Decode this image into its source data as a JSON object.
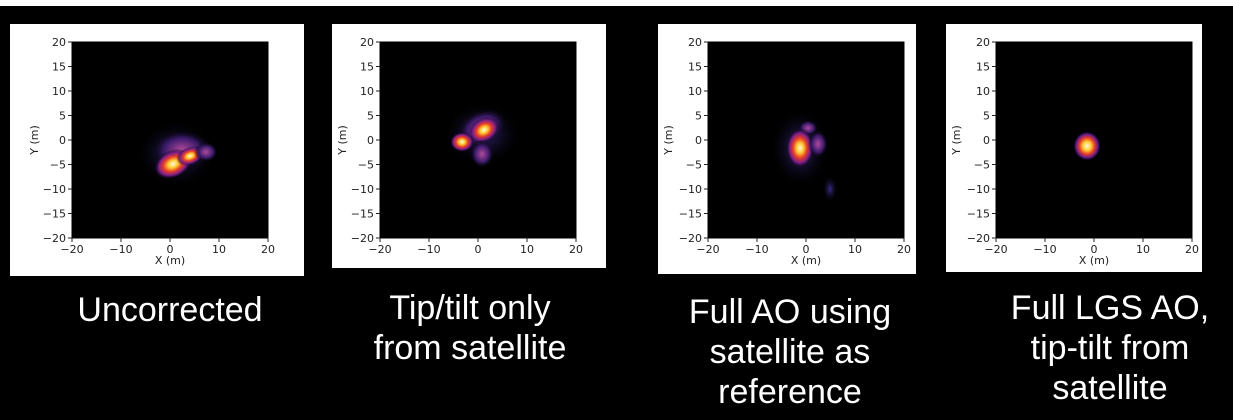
{
  "colors": {
    "background": "#000000",
    "panel": "#ffffff",
    "text": "#ffffff"
  },
  "panels": [
    {
      "caption": [
        "Uncorrected"
      ],
      "xlabel": "X (m)",
      "ylabel": "Y (m)",
      "xticks": [
        "−20",
        "−10",
        "0",
        "10",
        "20"
      ],
      "yticks": [
        "20",
        "15",
        "10",
        "5",
        "0",
        "−5",
        "−10",
        "−15",
        "−20"
      ]
    },
    {
      "caption": [
        "Tip/tilt only",
        "from satellite"
      ],
      "xlabel": "",
      "ylabel": "Y (m)",
      "xticks": [
        "−20",
        "−10",
        "0",
        "10",
        "20"
      ],
      "yticks": [
        "20",
        "15",
        "10",
        "5",
        "0",
        "−5",
        "−10",
        "−15",
        "−20"
      ]
    },
    {
      "caption": [
        "Full AO using",
        "satellite as",
        "reference"
      ],
      "xlabel": "X (m)",
      "ylabel": "Y (m)",
      "xticks": [
        "−20",
        "−10",
        "0",
        "10",
        "20"
      ],
      "yticks": [
        "20",
        "15",
        "10",
        "5",
        "0",
        "−5",
        "−10",
        "−15",
        "−20"
      ]
    },
    {
      "caption": [
        "Full LGS AO,",
        "tip-tilt from",
        "satellite"
      ],
      "xlabel": "X (m)",
      "ylabel": "Y (m)",
      "xticks": [
        "−20",
        "−10",
        "0",
        "10",
        "20"
      ],
      "yticks": [
        "20",
        "15",
        "10",
        "5",
        "0",
        "−5",
        "−10",
        "−15",
        "−20"
      ]
    }
  ],
  "chart_data": [
    {
      "type": "heatmap",
      "xlabel": "X (m)",
      "ylabel": "Y (m)",
      "xlim": [
        -20,
        20
      ],
      "ylim": [
        -20,
        20
      ]
    },
    {
      "type": "heatmap",
      "xlabel": "",
      "ylabel": "Y (m)",
      "xlim": [
        -20,
        20
      ],
      "ylim": [
        -20,
        20
      ]
    },
    {
      "type": "heatmap",
      "xlabel": "X (m)",
      "ylabel": "Y (m)",
      "xlim": [
        -20,
        20
      ],
      "ylim": [
        -20,
        20
      ]
    },
    {
      "type": "heatmap",
      "xlabel": "X (m)",
      "ylabel": "Y (m)",
      "xlim": [
        -20,
        20
      ],
      "ylim": [
        -20,
        20
      ]
    }
  ]
}
